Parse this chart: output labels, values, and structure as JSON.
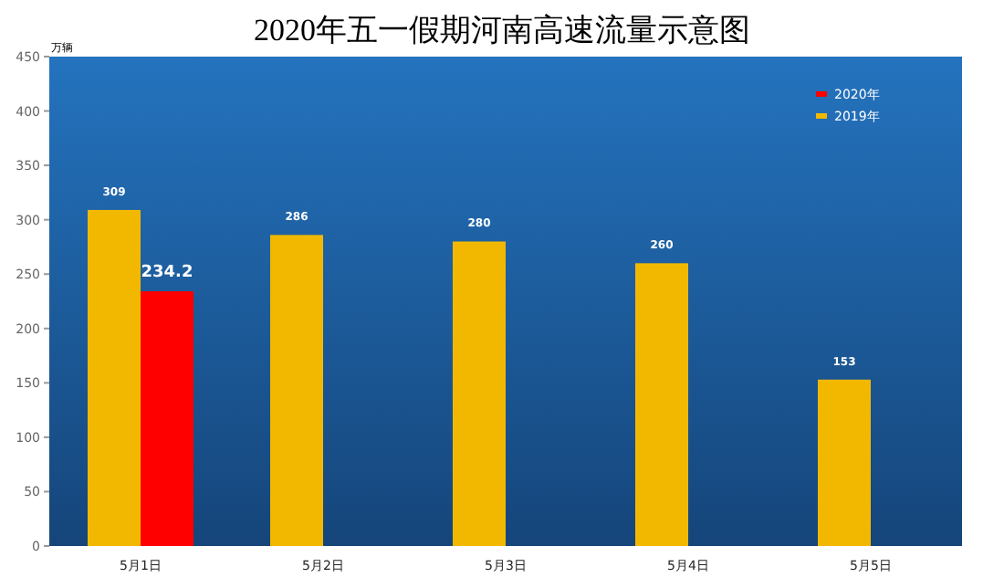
{
  "chart_data": {
    "type": "bar",
    "title": "2020年五一假期河南高速流量示意图",
    "ylabel": "万辆",
    "categories": [
      "5月1日",
      "5月2日",
      "5月3日",
      "5月4日",
      "5月5日"
    ],
    "series": [
      {
        "name": "2019年",
        "color": "#f2b800",
        "values": [
          309,
          286,
          280,
          260,
          153
        ]
      },
      {
        "name": "2020年",
        "color": "#ff0000",
        "values": [
          234.2,
          null,
          null,
          null,
          null
        ]
      }
    ],
    "ylim": [
      0,
      450
    ],
    "yticks": [
      0,
      50,
      100,
      150,
      200,
      250,
      300,
      350,
      400,
      450
    ],
    "data_labels": true,
    "legend": "top right",
    "grid": false
  }
}
